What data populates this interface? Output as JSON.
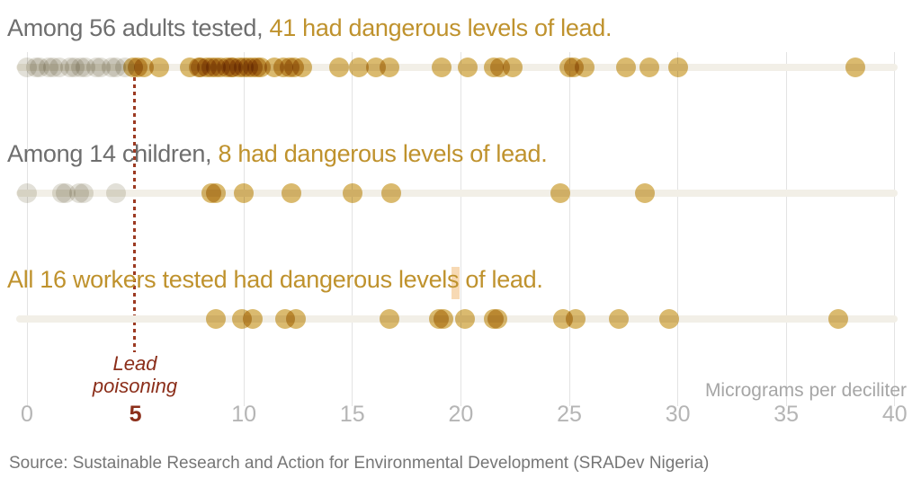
{
  "colors": {
    "headline_gray": "#6e6e6e",
    "headline_gold": "#bf922d",
    "dot_dangerous": "#c49016",
    "dot_safe": "#bab4a3",
    "threshold_red": "#9c3a22",
    "threshold_text": "#8b2e1a",
    "axis_gray": "#b5b5b5",
    "track_beige": "#f2efe7",
    "highlight": "#f7d9b4"
  },
  "source": "Source: Sustainable Research and Action for Environmental Development (SRADev Nigeria)",
  "chart_data": {
    "type": "scatter",
    "subtype": "strip-plot",
    "xlabel": "Micrograms per deciliter",
    "xlim": [
      0,
      40
    ],
    "x_ticks": [
      0,
      5,
      10,
      15,
      20,
      25,
      30,
      35,
      40
    ],
    "grid": "vertical",
    "threshold": {
      "x": 5,
      "tick_label": "5",
      "label_line1": "Lead",
      "label_line2": "poisoning"
    },
    "rows": [
      {
        "group": "adults",
        "n_tested": 56,
        "n_dangerous": 41,
        "headline_gray": "Among 56 adults tested, ",
        "headline_gold": "41 had dangerous levels of lead.",
        "safe_values": [
          0,
          0.4,
          0.6,
          1.0,
          1.2,
          1.5,
          2.0,
          2.2,
          2.5,
          2.7,
          3.2,
          3.4,
          3.9,
          4.1,
          4.5
        ],
        "dangerous_values": [
          4.9,
          5.1,
          5.4,
          6.1,
          7.5,
          7.9,
          8.0,
          8.3,
          8.5,
          8.7,
          8.9,
          9.2,
          9.4,
          9.5,
          9.8,
          10.0,
          10.2,
          10.4,
          10.6,
          10.8,
          11.4,
          11.8,
          12.1,
          12.3,
          12.7,
          14.4,
          15.3,
          16.1,
          16.7,
          19.1,
          20.3,
          21.5,
          21.8,
          22.4,
          25.0,
          25.2,
          25.7,
          27.6,
          28.7,
          30.0,
          38.2
        ]
      },
      {
        "group": "children",
        "n_tested": 14,
        "n_dangerous": 8,
        "headline_gray": "Among 14 children, ",
        "headline_gold": "8 had dangerous levels of lead.",
        "safe_values": [
          0,
          1.6,
          1.8,
          2.4,
          2.6,
          4.1
        ],
        "dangerous_values": [
          8.5,
          8.7,
          10.0,
          12.2,
          15.0,
          16.8,
          24.6,
          28.5
        ]
      },
      {
        "group": "workers",
        "n_tested": 16,
        "n_dangerous": 16,
        "headline_gray": "",
        "headline_gold": "All 16 workers tested had dangerous levels of lead.",
        "safe_values": [],
        "dangerous_values": [
          8.7,
          9.9,
          10.4,
          11.9,
          12.4,
          16.7,
          19.0,
          19.2,
          20.2,
          21.5,
          21.7,
          24.7,
          25.3,
          27.3,
          29.6,
          37.4
        ]
      }
    ]
  }
}
